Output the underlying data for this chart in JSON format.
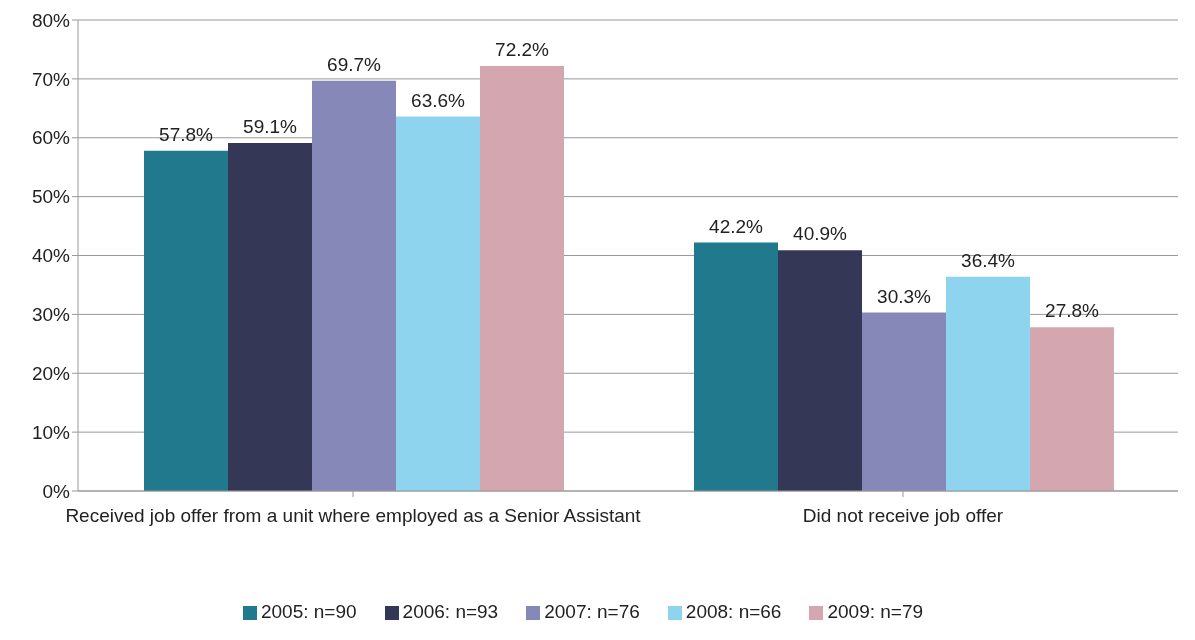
{
  "chart_data": {
    "type": "bar",
    "categories": [
      "Received job offer from a unit where employed as a Senior Assistant",
      "Did not receive job offer"
    ],
    "series": [
      {
        "name": "2005: n=90",
        "color": "#21798e",
        "values": [
          57.8,
          42.2
        ],
        "value_labels": [
          "57.8%",
          "42.2%"
        ]
      },
      {
        "name": "2006: n=93",
        "color": "#343756",
        "values": [
          59.1,
          40.9
        ],
        "value_labels": [
          "59.1%",
          "40.9%"
        ]
      },
      {
        "name": "2007: n=76",
        "color": "#8689b7",
        "values": [
          69.7,
          30.3
        ],
        "value_labels": [
          "69.7%",
          "30.3%"
        ]
      },
      {
        "name": "2008: n=66",
        "color": "#8fd4ef",
        "values": [
          63.6,
          36.4
        ],
        "value_labels": [
          "63.6%",
          "36.4%"
        ]
      },
      {
        "name": "2009: n=79",
        "color": "#d4a7b0",
        "values": [
          72.2,
          27.8
        ],
        "value_labels": [
          "72.2%",
          "27.8%"
        ]
      }
    ],
    "ylim": [
      0,
      80
    ],
    "yticks": [
      {
        "value": 0,
        "label": "0%"
      },
      {
        "value": 10,
        "label": "10%"
      },
      {
        "value": 20,
        "label": "20%"
      },
      {
        "value": 30,
        "label": "30%"
      },
      {
        "value": 40,
        "label": "40%"
      },
      {
        "value": 50,
        "label": "50%"
      },
      {
        "value": 60,
        "label": "60%"
      },
      {
        "value": 70,
        "label": "70%"
      },
      {
        "value": 80,
        "label": "80%"
      }
    ],
    "grid": "y",
    "legend": "bottom"
  }
}
